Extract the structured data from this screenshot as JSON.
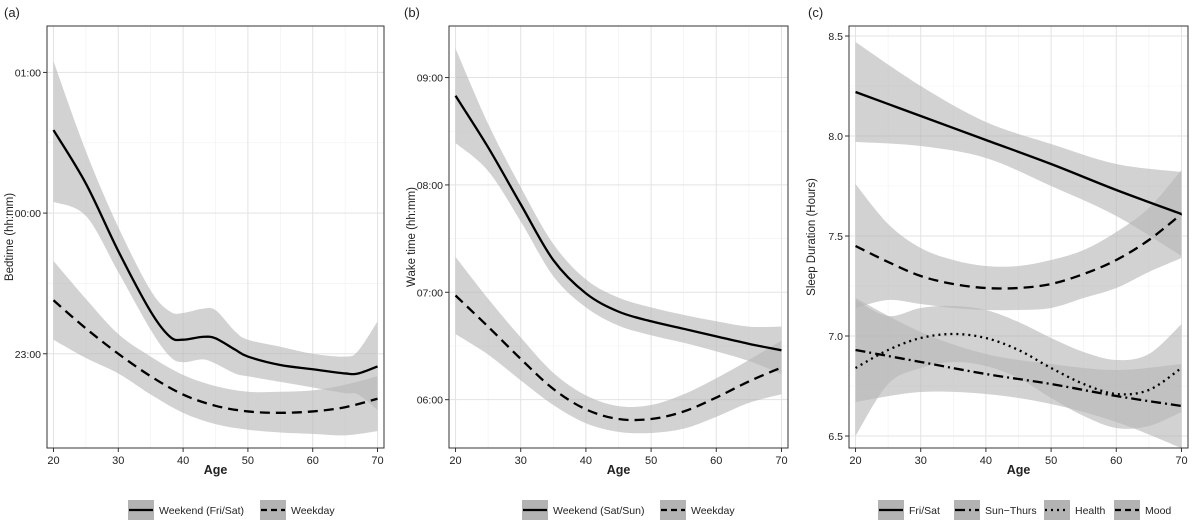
{
  "figure": {
    "panels": [
      "(a)",
      "(b)",
      "(c)"
    ]
  },
  "chart_data": [
    {
      "type": "line",
      "panel_label": "(a)",
      "xlabel": "Age",
      "ylabel": "Bedtime (hh:mm)",
      "xlim": [
        19,
        71
      ],
      "ylim": [
        22.33,
        25.33
      ],
      "x_ticks": [
        20,
        30,
        40,
        50,
        60,
        70
      ],
      "y_ticks": [
        {
          "value": 23,
          "label": "23:00"
        },
        {
          "value": 24,
          "label": "00:00"
        },
        {
          "value": 25,
          "label": "01:00"
        }
      ],
      "grid": true,
      "confidence_bands": true,
      "legend_position": "bottom",
      "series": [
        {
          "name": "Weekend (Fri/Sat)",
          "style": "solid",
          "x": [
            20,
            25,
            30,
            35,
            38,
            40,
            43,
            45,
            48,
            50,
            55,
            60,
            65,
            67,
            70
          ],
          "y": [
            24.59,
            24.21,
            23.73,
            23.3,
            23.12,
            23.1,
            23.12,
            23.11,
            23.03,
            22.98,
            22.92,
            22.89,
            22.86,
            22.86,
            22.91
          ],
          "band_upper": [
            25.08,
            24.44,
            23.9,
            23.45,
            23.3,
            23.29,
            23.32,
            23.31,
            23.16,
            23.1,
            23.05,
            23.0,
            22.98,
            23.02,
            23.23
          ],
          "band_lower": [
            24.08,
            23.98,
            23.58,
            23.17,
            22.98,
            22.94,
            22.96,
            22.93,
            22.86,
            22.84,
            22.8,
            22.76,
            22.72,
            22.71,
            22.6
          ]
        },
        {
          "name": "Weekday",
          "style": "dashed",
          "x": [
            20,
            25,
            30,
            35,
            40,
            45,
            50,
            55,
            60,
            65,
            70
          ],
          "y": [
            23.38,
            23.18,
            23.0,
            22.84,
            22.71,
            22.63,
            22.59,
            22.58,
            22.59,
            22.62,
            22.68
          ],
          "band_upper": [
            23.66,
            23.39,
            23.14,
            22.98,
            22.85,
            22.77,
            22.73,
            22.73,
            22.74,
            22.78,
            22.84
          ],
          "band_lower": [
            23.1,
            22.97,
            22.86,
            22.71,
            22.58,
            22.5,
            22.46,
            22.44,
            22.43,
            22.42,
            22.45
          ]
        }
      ]
    },
    {
      "type": "line",
      "panel_label": "(b)",
      "xlabel": "Age",
      "ylabel": "Wake time (hh:mm)",
      "xlim": [
        19,
        71
      ],
      "ylim": [
        5.55,
        9.48
      ],
      "x_ticks": [
        20,
        30,
        40,
        50,
        60,
        70
      ],
      "y_ticks": [
        {
          "value": 6,
          "label": "06:00"
        },
        {
          "value": 7,
          "label": "07:00"
        },
        {
          "value": 8,
          "label": "08:00"
        },
        {
          "value": 9,
          "label": "09:00"
        }
      ],
      "grid": true,
      "confidence_bands": true,
      "legend_position": "bottom",
      "series": [
        {
          "name": "Weekend (Sat/Sun)",
          "style": "solid",
          "x": [
            20,
            25,
            30,
            35,
            40,
            45,
            50,
            55,
            60,
            65,
            70
          ],
          "y": [
            8.83,
            8.35,
            7.82,
            7.3,
            6.99,
            6.82,
            6.73,
            6.66,
            6.59,
            6.52,
            6.46
          ],
          "band_upper": [
            9.27,
            8.57,
            7.98,
            7.45,
            7.12,
            6.95,
            6.86,
            6.79,
            6.73,
            6.68,
            6.68
          ],
          "band_lower": [
            8.39,
            8.13,
            7.66,
            7.15,
            6.86,
            6.69,
            6.6,
            6.53,
            6.45,
            6.36,
            6.24
          ]
        },
        {
          "name": "Weekday",
          "style": "dashed",
          "x": [
            20,
            25,
            30,
            35,
            40,
            45,
            50,
            55,
            60,
            65,
            70
          ],
          "y": [
            6.97,
            6.68,
            6.38,
            6.1,
            5.91,
            5.82,
            5.82,
            5.89,
            6.02,
            6.17,
            6.3
          ],
          "band_upper": [
            7.33,
            6.94,
            6.58,
            6.25,
            6.04,
            5.94,
            5.95,
            6.05,
            6.2,
            6.37,
            6.55
          ],
          "band_lower": [
            6.61,
            6.42,
            6.18,
            5.95,
            5.78,
            5.7,
            5.69,
            5.73,
            5.84,
            5.97,
            6.05
          ]
        }
      ]
    },
    {
      "type": "line",
      "panel_label": "(c)",
      "xlabel": "Age",
      "ylabel": "Sleep Duration (Hours)",
      "xlim": [
        19,
        71
      ],
      "ylim": [
        6.44,
        8.55
      ],
      "x_ticks": [
        20,
        30,
        40,
        50,
        60,
        70
      ],
      "y_ticks": [
        {
          "value": 6.5,
          "label": "6.5"
        },
        {
          "value": 7.0,
          "label": "7.0"
        },
        {
          "value": 7.5,
          "label": "7.5"
        },
        {
          "value": 8.0,
          "label": "8.0"
        },
        {
          "value": 8.5,
          "label": "8.5"
        }
      ],
      "grid": true,
      "confidence_bands": true,
      "legend_position": "bottom",
      "series": [
        {
          "name": "Fri/Sat",
          "style": "solid",
          "x": [
            20,
            30,
            40,
            50,
            60,
            70
          ],
          "y": [
            8.22,
            8.1,
            7.98,
            7.86,
            7.73,
            7.61
          ],
          "band_upper": [
            8.47,
            8.25,
            8.07,
            7.96,
            7.86,
            7.82
          ],
          "band_lower": [
            7.97,
            7.95,
            7.89,
            7.75,
            7.6,
            7.4
          ]
        },
        {
          "name": "Sun−Thurs",
          "style": "dotdash",
          "x": [
            20,
            30,
            40,
            50,
            60,
            70
          ],
          "y": [
            6.93,
            6.87,
            6.81,
            6.76,
            6.7,
            6.65
          ],
          "band_upper": [
            7.19,
            7.02,
            6.91,
            6.86,
            6.83,
            6.86
          ],
          "band_lower": [
            6.67,
            6.72,
            6.71,
            6.66,
            6.57,
            6.44
          ]
        },
        {
          "name": "Health",
          "style": "dotted",
          "x": [
            20,
            25,
            30,
            35,
            40,
            45,
            50,
            55,
            60,
            65,
            70
          ],
          "y": [
            6.84,
            6.93,
            6.99,
            7.01,
            6.99,
            6.93,
            6.84,
            6.76,
            6.71,
            6.73,
            6.84
          ],
          "band_upper": [
            7.18,
            7.1,
            7.14,
            7.15,
            7.13,
            7.07,
            6.99,
            6.92,
            6.88,
            6.91,
            7.06
          ],
          "band_lower": [
            6.5,
            6.76,
            6.84,
            6.87,
            6.85,
            6.79,
            6.69,
            6.6,
            6.54,
            6.55,
            6.62
          ]
        },
        {
          "name": "Mood",
          "style": "dashed",
          "x": [
            20,
            25,
            30,
            35,
            40,
            45,
            50,
            55,
            60,
            65,
            70
          ],
          "y": [
            7.45,
            7.37,
            7.3,
            7.26,
            7.24,
            7.24,
            7.26,
            7.31,
            7.38,
            7.48,
            7.61
          ],
          "band_upper": [
            7.76,
            7.56,
            7.44,
            7.38,
            7.35,
            7.35,
            7.38,
            7.43,
            7.52,
            7.64,
            7.83
          ],
          "band_lower": [
            7.14,
            7.18,
            7.16,
            7.14,
            7.13,
            7.13,
            7.14,
            7.19,
            7.24,
            7.32,
            7.39
          ]
        }
      ]
    }
  ]
}
